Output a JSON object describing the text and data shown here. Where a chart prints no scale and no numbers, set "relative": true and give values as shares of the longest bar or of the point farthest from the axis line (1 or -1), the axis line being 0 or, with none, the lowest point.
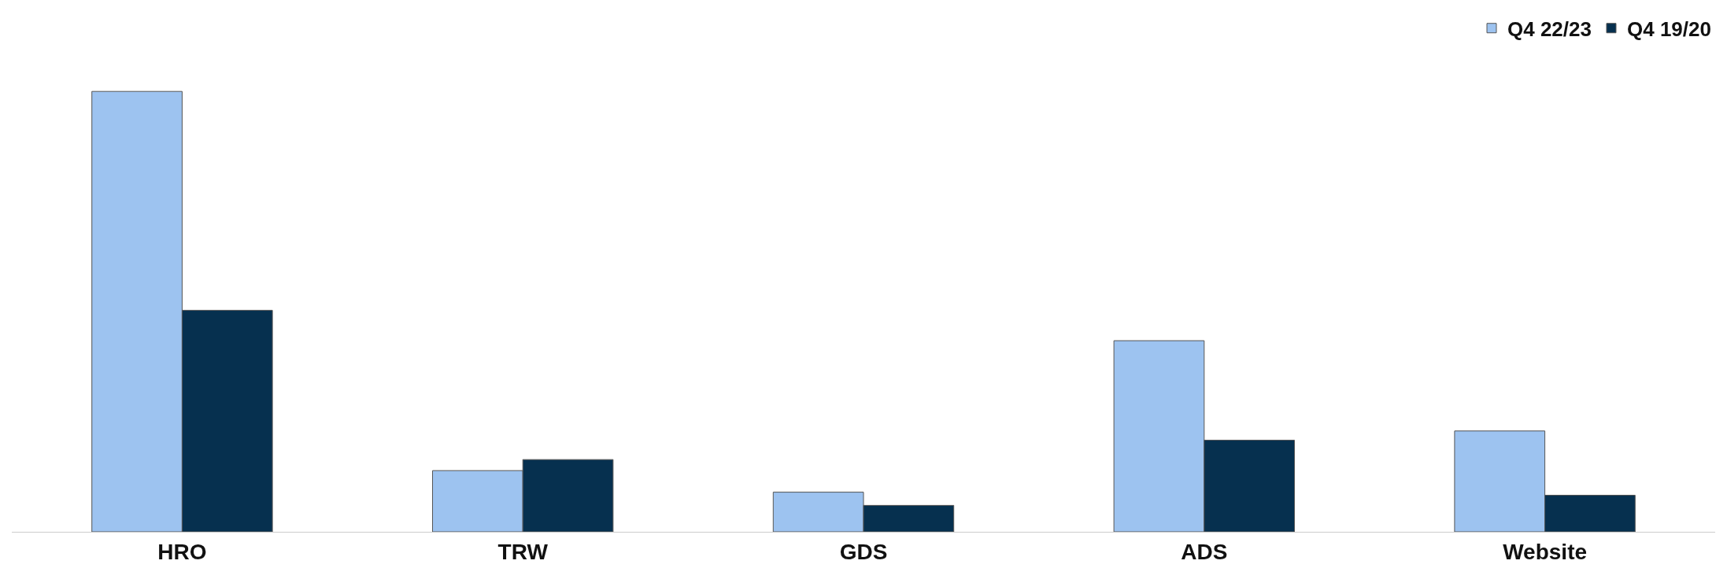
{
  "chart_data": {
    "type": "bar",
    "relative": true,
    "categories": [
      "HRO",
      "TRW",
      "GDS",
      "ADS",
      "Website"
    ],
    "series": [
      {
        "name": "Q4 22/23",
        "color": "#9dc3f0",
        "values": [
          1,
          0.139,
          0.09,
          0.434,
          0.229
        ]
      },
      {
        "name": "Q4 19/20",
        "color": "#06304f",
        "values": [
          0.503,
          0.164,
          0.06,
          0.208,
          0.083
        ]
      }
    ],
    "legend": "top right",
    "grid": false
  }
}
